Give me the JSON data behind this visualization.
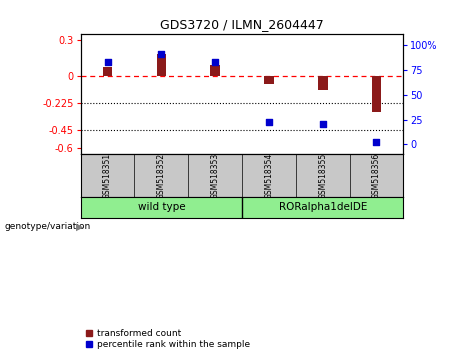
{
  "title": "GDS3720 / ILMN_2604447",
  "samples": [
    "GSM518351",
    "GSM518352",
    "GSM518353",
    "GSM518354",
    "GSM518355",
    "GSM518356"
  ],
  "group_labels": [
    "wild type",
    "RORalpha1delDE"
  ],
  "bar_values": [
    0.07,
    0.185,
    0.09,
    -0.07,
    -0.12,
    -0.3
  ],
  "dot_values": [
    83,
    91,
    83,
    22,
    20,
    2
  ],
  "bar_color": "#8B1A1A",
  "dot_color": "#0000CD",
  "ylim_left": [
    -0.65,
    0.35
  ],
  "ylim_right": [
    -10,
    112
  ],
  "yticks_left": [
    0.3,
    0,
    -0.225,
    -0.45,
    -0.6
  ],
  "yticks_right": [
    100,
    75,
    50,
    25,
    0
  ],
  "ytick_right_labels": [
    "100%",
    "75",
    "50",
    "25",
    "0"
  ],
  "xlabel": "genotype/variation",
  "legend_items": [
    "transformed count",
    "percentile rank within the sample"
  ],
  "background_color": "#ffffff",
  "plot_bg_color": "#ffffff",
  "group_divider": 2.5,
  "bar_width": 0.18,
  "label_row_color": "#c8c8c8",
  "group_row_color": "#90EE90"
}
